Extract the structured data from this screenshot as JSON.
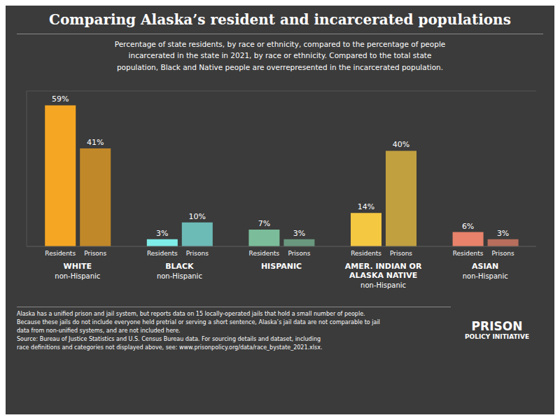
{
  "chart_data": {
    "type": "bar",
    "title": "Comparing Alaska’s resident and incarcerated populations",
    "subtitle": "Percentage of state residents, by race or ethnicity, compared to the percentage of people\nincarcerated in the state in 2021, by race or ethnicity. Compared to the total state\npopulation, Black and Native people are overrepresented in the incarcerated population.",
    "categories": [
      "WHITE",
      "BLACK",
      "HISPANIC",
      "AMER. INDIAN OR\nALASKA NATIVE",
      "ASIAN"
    ],
    "sublabels": [
      "non-Hispanic",
      "non-Hispanic",
      null,
      "non-Hispanic",
      "non-Hispanic"
    ],
    "series": [
      {
        "name": "Residents",
        "values": [
          59,
          3,
          7,
          14,
          6
        ],
        "value_labels": [
          "59%",
          "3%",
          "7%",
          "14%",
          "6%"
        ],
        "colors": [
          "#F5A623",
          "#7FEDE8",
          "#7BBD9A",
          "#F5C842",
          "#E8826A"
        ]
      },
      {
        "name": "Prisons",
        "values": [
          41,
          10,
          3,
          40,
          3
        ],
        "value_labels": [
          "41%",
          "10%",
          "3%",
          "40%",
          "3%"
        ],
        "colors": [
          "#F5A623",
          "#7FEDE8",
          "#7BBD9A",
          "#F5C842",
          "#E8826A"
        ]
      }
    ],
    "ylim": [
      0,
      65
    ],
    "yticks": [
      20,
      40,
      60
    ],
    "grid": true,
    "tick_labels": false,
    "data_labels": true,
    "footer": "Alaska has a unified prison and jail system, but reports data on 15 locally-operated jails that hold a small number of people.\nBecause these jails do not include everyone held pretrial or serving a short sentence, Alaska’s jail data are not comparable to jail\ndata from non-unified systems, and are not included here.\nSource: Bureau of Justice Statistics and U.S. Census Bureau data. For sourcing details and dataset, including\nrace definitions and categories not displayed above, see: www.prisonpolicy.org/data/race_bystate_2021.xlsx.",
    "annotations": [
      "PRISON",
      "POLICY INITIATIVE"
    ]
  }
}
